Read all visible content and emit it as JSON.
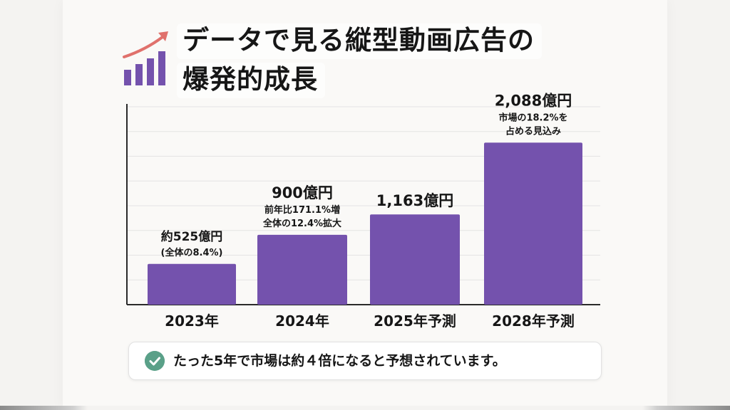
{
  "title": {
    "line1": "データで見る縦型動画広告の",
    "line2": "爆発的成長"
  },
  "icons": {
    "title_icon": "growth-bar-chart-arrow-icon",
    "note_icon": "check-circle-icon"
  },
  "colors": {
    "bar": "#7452ad",
    "arrow": "#e0716c",
    "check": "#5aa088",
    "text": "#161616"
  },
  "note": {
    "text": "たった5年で市場は約４倍になると予想されています。"
  },
  "chart_data": {
    "type": "bar",
    "title": "",
    "xlabel": "",
    "ylabel": "",
    "unit": "億円",
    "categories": [
      "2023年",
      "2024年",
      "2025年予測",
      "2028年予測"
    ],
    "values": [
      525,
      900,
      1163,
      2088
    ],
    "ylim": [
      0,
      2550
    ],
    "grid": true,
    "legend": "none",
    "value_labels": [
      "約525億円",
      "900億円",
      "1,163億円",
      "2,088億円"
    ],
    "annotations": [
      [
        "(全体の8.4%)"
      ],
      [
        "前年比171.1%増",
        "全体の12.4%拡大"
      ],
      [],
      [
        "市場の18.2%を",
        "占める見込み"
      ]
    ]
  }
}
